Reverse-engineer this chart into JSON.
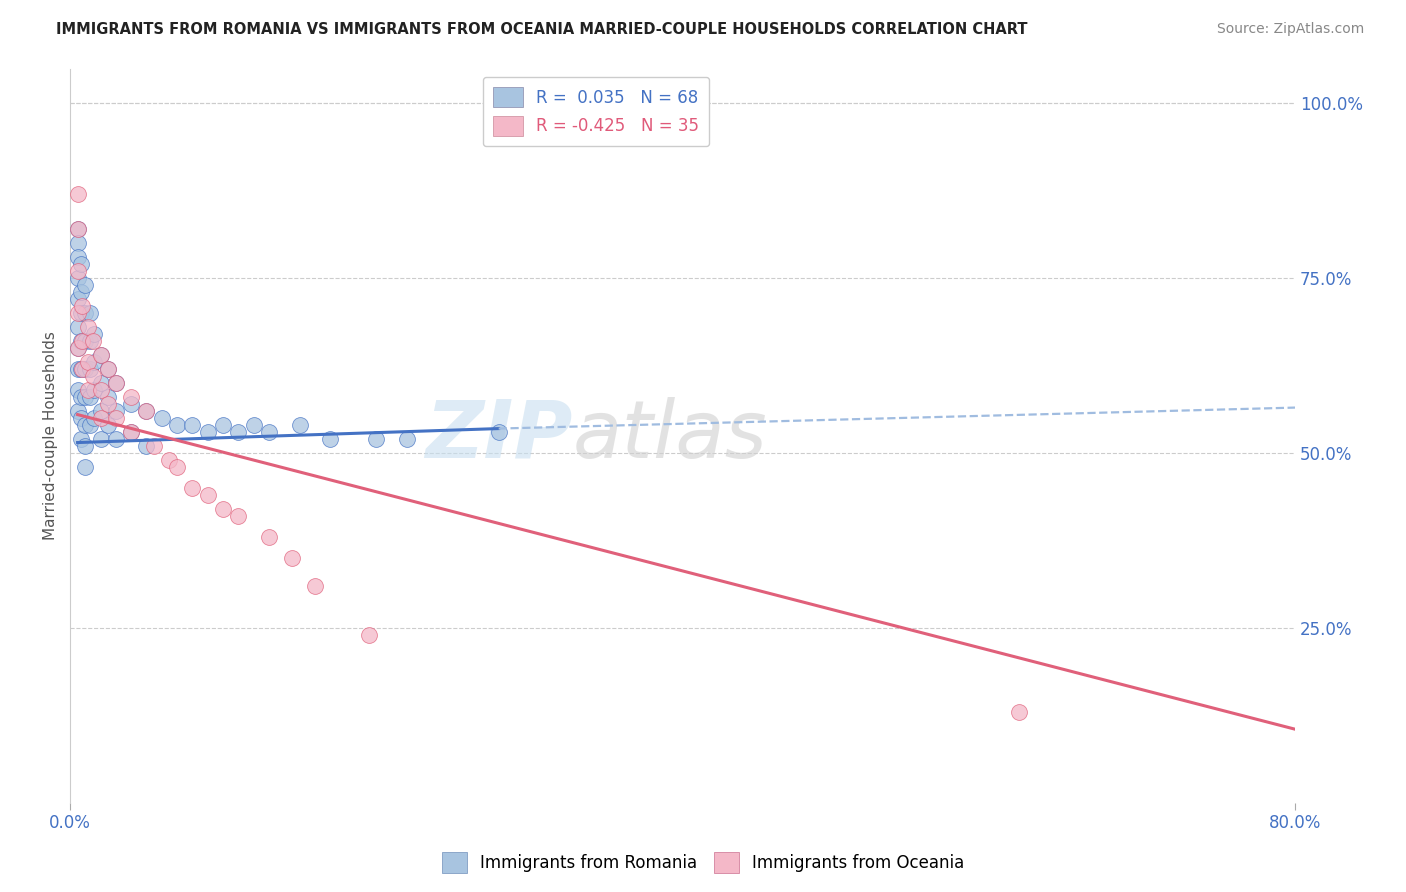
{
  "title": "IMMIGRANTS FROM ROMANIA VS IMMIGRANTS FROM OCEANIA MARRIED-COUPLE HOUSEHOLDS CORRELATION CHART",
  "source": "Source: ZipAtlas.com",
  "ylabel": "Married-couple Households",
  "xlim": [
    0.0,
    0.8
  ],
  "ylim": [
    0.0,
    1.05
  ],
  "color_romania": "#a8c4e0",
  "color_oceania": "#f4b8c8",
  "line_romania_color": "#4472c4",
  "line_oceania_color": "#e0607a",
  "romania_trend": [
    0.005,
    0.515,
    0.28,
    0.535,
    0.8,
    0.565
  ],
  "oceania_trend_solid": [
    0.005,
    0.555,
    0.8,
    0.105
  ],
  "romania_x": [
    0.005,
    0.005,
    0.005,
    0.005,
    0.005,
    0.005,
    0.005,
    0.005,
    0.005,
    0.005,
    0.007,
    0.007,
    0.007,
    0.007,
    0.007,
    0.007,
    0.007,
    0.007,
    0.01,
    0.01,
    0.01,
    0.01,
    0.01,
    0.01,
    0.01,
    0.01,
    0.013,
    0.013,
    0.013,
    0.013,
    0.013,
    0.016,
    0.016,
    0.016,
    0.016,
    0.02,
    0.02,
    0.02,
    0.02,
    0.025,
    0.025,
    0.025,
    0.03,
    0.03,
    0.03,
    0.04,
    0.04,
    0.05,
    0.05,
    0.06,
    0.07,
    0.08,
    0.09,
    0.1,
    0.11,
    0.12,
    0.13,
    0.15,
    0.17,
    0.2,
    0.22,
    0.28
  ],
  "romania_y": [
    0.82,
    0.8,
    0.78,
    0.75,
    0.72,
    0.68,
    0.65,
    0.62,
    0.59,
    0.56,
    0.77,
    0.73,
    0.7,
    0.66,
    0.62,
    0.58,
    0.55,
    0.52,
    0.74,
    0.7,
    0.66,
    0.62,
    0.58,
    0.54,
    0.51,
    0.48,
    0.7,
    0.66,
    0.62,
    0.58,
    0.54,
    0.67,
    0.63,
    0.59,
    0.55,
    0.64,
    0.6,
    0.56,
    0.52,
    0.62,
    0.58,
    0.54,
    0.6,
    0.56,
    0.52,
    0.57,
    0.53,
    0.56,
    0.51,
    0.55,
    0.54,
    0.54,
    0.53,
    0.54,
    0.53,
    0.54,
    0.53,
    0.54,
    0.52,
    0.52,
    0.52,
    0.53
  ],
  "oceania_x": [
    0.005,
    0.005,
    0.005,
    0.005,
    0.005,
    0.008,
    0.008,
    0.008,
    0.012,
    0.012,
    0.012,
    0.015,
    0.015,
    0.02,
    0.02,
    0.02,
    0.025,
    0.025,
    0.03,
    0.03,
    0.04,
    0.04,
    0.05,
    0.055,
    0.065,
    0.07,
    0.08,
    0.09,
    0.1,
    0.11,
    0.13,
    0.145,
    0.16,
    0.195,
    0.62
  ],
  "oceania_y": [
    0.87,
    0.82,
    0.76,
    0.7,
    0.65,
    0.71,
    0.66,
    0.62,
    0.68,
    0.63,
    0.59,
    0.66,
    0.61,
    0.64,
    0.59,
    0.55,
    0.62,
    0.57,
    0.6,
    0.55,
    0.58,
    0.53,
    0.56,
    0.51,
    0.49,
    0.48,
    0.45,
    0.44,
    0.42,
    0.41,
    0.38,
    0.35,
    0.31,
    0.24,
    0.13
  ]
}
